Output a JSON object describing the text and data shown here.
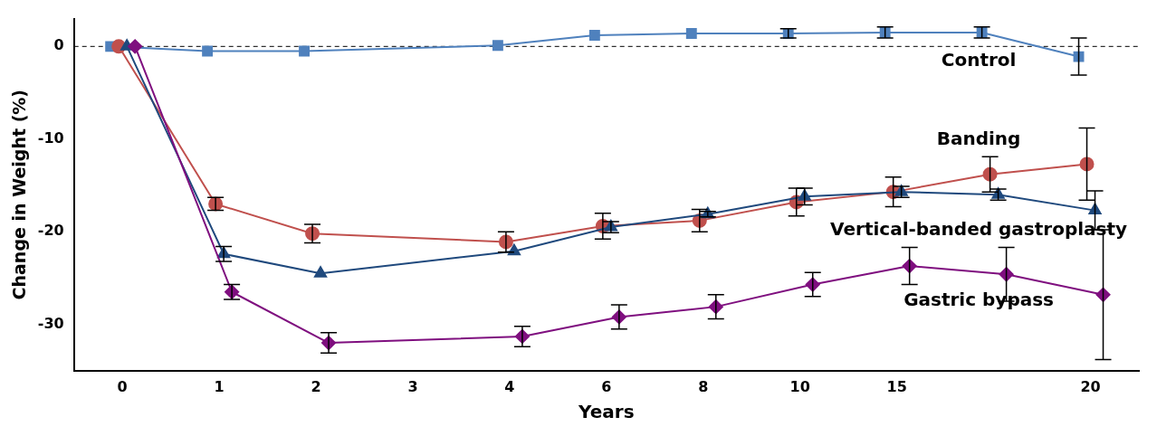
{
  "chart_data": {
    "type": "line",
    "xlabel": "Years",
    "ylabel": "Change in Weight (%)",
    "categories": [
      "0",
      "1",
      "2",
      "3",
      "4",
      "6",
      "8",
      "10",
      "15",
      null,
      "20"
    ],
    "ylim": [
      -35,
      3
    ],
    "yticks": [
      0,
      -10,
      -20,
      -30
    ],
    "grid": false,
    "legend": false,
    "ref_lines": [
      {
        "axis": "y",
        "value": 0,
        "line_style": "dashed",
        "color": "#000000"
      }
    ],
    "series": [
      {
        "name": "Control",
        "color": "#4f81bd",
        "marker": "square",
        "values": [
          0,
          -0.5,
          -0.5,
          null,
          0.1,
          1.2,
          1.4,
          1.4,
          1.5,
          1.5,
          -1.1
        ],
        "errors": [
          null,
          null,
          null,
          null,
          null,
          null,
          null,
          0.5,
          0.6,
          0.6,
          2.0
        ]
      },
      {
        "name": "Banding",
        "color": "#c0504d",
        "marker": "circle",
        "values": [
          0,
          -17.0,
          -20.2,
          null,
          -21.1,
          -19.4,
          -18.8,
          -16.8,
          -15.7,
          -13.8,
          -12.7
        ],
        "errors": [
          null,
          0.7,
          1.0,
          null,
          1.1,
          1.4,
          1.2,
          1.5,
          1.6,
          1.9,
          3.9
        ]
      },
      {
        "name": "Vertical-banded gastroplasty",
        "color": "#1f497d",
        "marker": "triangle",
        "values": [
          0,
          -22.4,
          -24.5,
          null,
          -22.1,
          -19.5,
          -18.1,
          -16.2,
          -15.7,
          -16.0,
          -17.7
        ],
        "errors": [
          null,
          0.8,
          null,
          null,
          null,
          0.6,
          0.3,
          0.9,
          0.6,
          0.6,
          2.1
        ]
      },
      {
        "name": "Gastric bypass",
        "color": "#7f0f7f",
        "marker": "diamond",
        "values": [
          0,
          -26.5,
          -32.0,
          null,
          -31.3,
          -29.2,
          -28.1,
          -25.7,
          -23.7,
          -24.6,
          -26.8
        ],
        "errors": [
          null,
          0.8,
          1.1,
          null,
          1.1,
          1.3,
          1.3,
          1.3,
          2.0,
          2.9,
          7.0
        ]
      }
    ]
  }
}
